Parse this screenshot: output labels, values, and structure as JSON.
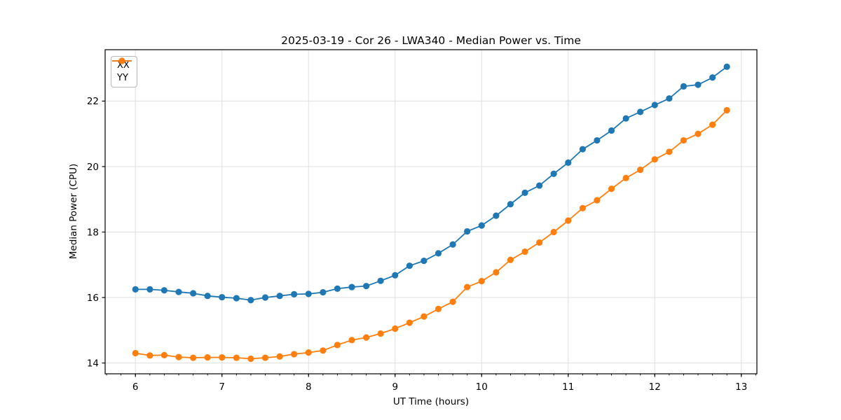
{
  "chart_data": {
    "type": "line",
    "title": "2025-03-19 - Cor 26 - LWA340 - Median Power vs. Time",
    "xlabel": "UT Time (hours)",
    "ylabel": "Median Power (CPU)",
    "xlim": [
      5.65,
      13.18
    ],
    "ylim": [
      13.67,
      23.57
    ],
    "x_ticks": [
      6,
      7,
      8,
      9,
      10,
      11,
      12,
      13
    ],
    "y_ticks": [
      14,
      16,
      18,
      20,
      22
    ],
    "x_minor_tick_step": 0.16667,
    "grid": true,
    "legend_position": "upper-left",
    "x": [
      6.0,
      6.167,
      6.333,
      6.5,
      6.667,
      6.833,
      7.0,
      7.167,
      7.333,
      7.5,
      7.667,
      7.833,
      8.0,
      8.167,
      8.333,
      8.5,
      8.667,
      8.833,
      9.0,
      9.167,
      9.333,
      9.5,
      9.667,
      9.833,
      10.0,
      10.167,
      10.333,
      10.5,
      10.667,
      10.833,
      11.0,
      11.167,
      11.333,
      11.5,
      11.667,
      11.833,
      12.0,
      12.167,
      12.333,
      12.5,
      12.667,
      12.833
    ],
    "series": [
      {
        "name": "XX",
        "color": "#1f77b4",
        "values": [
          16.25,
          16.25,
          16.22,
          16.17,
          16.13,
          16.05,
          16.01,
          15.98,
          15.92,
          16.0,
          16.05,
          16.1,
          16.11,
          16.16,
          16.27,
          16.32,
          16.35,
          16.51,
          16.68,
          16.97,
          17.12,
          17.35,
          17.62,
          18.02,
          18.2,
          18.5,
          18.85,
          19.2,
          19.42,
          19.78,
          20.12,
          20.53,
          20.8,
          21.1,
          21.47,
          21.67,
          21.88,
          22.08,
          22.45,
          22.5,
          22.72,
          23.05
        ]
      },
      {
        "name": "YY",
        "color": "#ff7f0e",
        "values": [
          14.3,
          14.23,
          14.24,
          14.18,
          14.16,
          14.17,
          14.17,
          14.16,
          14.13,
          14.16,
          14.2,
          14.27,
          14.32,
          14.38,
          14.55,
          14.7,
          14.78,
          14.9,
          15.05,
          15.23,
          15.42,
          15.65,
          15.87,
          16.32,
          16.5,
          16.77,
          17.15,
          17.4,
          17.68,
          18.0,
          18.35,
          18.73,
          18.97,
          19.32,
          19.65,
          19.9,
          20.22,
          20.45,
          20.8,
          21.0,
          21.28,
          21.72
        ]
      }
    ],
    "style": {
      "grid_color": "#e0e0e0",
      "spine_color": "#000000",
      "marker_radius": 4.6,
      "line_width": 1.8
    }
  }
}
